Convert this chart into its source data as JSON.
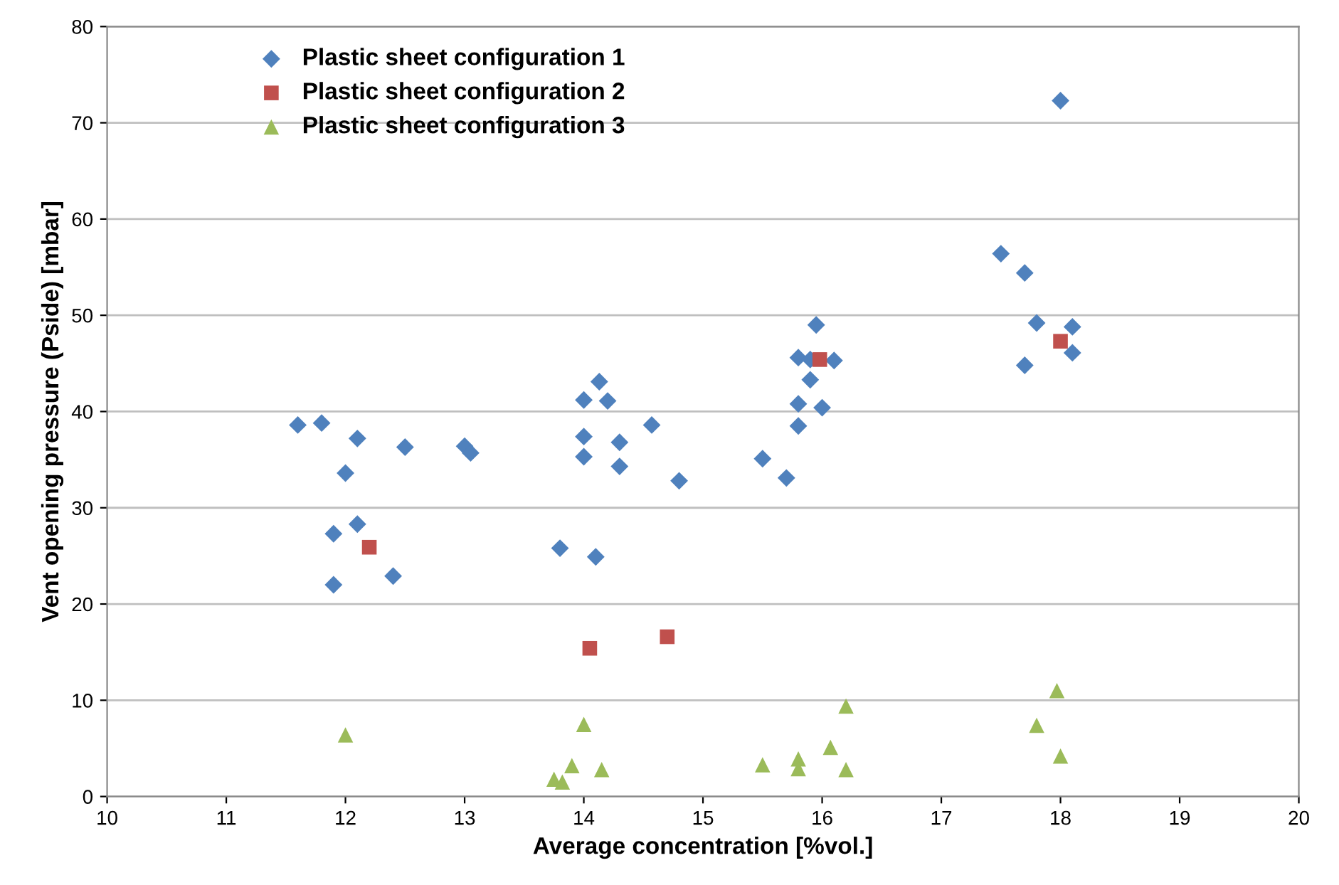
{
  "chart_data": {
    "type": "scatter",
    "xlabel": "Average concentration [%vol.]",
    "ylabel": "Vent opening pressure (Pside) [mbar]",
    "xlim": [
      10,
      20
    ],
    "xticks": [
      10,
      11,
      12,
      13,
      14,
      15,
      16,
      17,
      18,
      19,
      20
    ],
    "ylim": [
      0,
      80
    ],
    "yticks": [
      0,
      10,
      20,
      30,
      40,
      50,
      60,
      70,
      80
    ],
    "grid": "y",
    "legend": "top left",
    "series": [
      {
        "name": "Plastic sheet configuration 1",
        "color": "#4f81bd",
        "marker": "diamond",
        "x": [
          11.6,
          11.8,
          12.1,
          12.0,
          12.5,
          13.0,
          13.05,
          11.9,
          12.1,
          11.9,
          12.4,
          13.8,
          14.1,
          14.0,
          14.13,
          14.2,
          14.0,
          14.0,
          14.3,
          14.3,
          14.57,
          14.8,
          15.5,
          15.7,
          15.8,
          15.95,
          15.9,
          15.9,
          16.1,
          15.8,
          15.8,
          16.0,
          17.5,
          17.7,
          17.8,
          17.7,
          18.1,
          18.1,
          18.0
        ],
        "values": [
          38.6,
          38.8,
          37.2,
          33.6,
          36.3,
          36.4,
          35.7,
          27.3,
          28.3,
          22.0,
          22.9,
          25.8,
          24.9,
          41.2,
          43.1,
          41.1,
          37.4,
          35.3,
          36.8,
          34.3,
          38.6,
          32.8,
          35.1,
          33.1,
          45.6,
          49.0,
          45.4,
          43.3,
          45.3,
          40.8,
          38.5,
          40.4,
          56.4,
          54.4,
          49.2,
          44.8,
          48.8,
          46.1,
          72.3
        ]
      },
      {
        "name": "Plastic sheet configuration 2",
        "color": "#c0504d",
        "marker": "square",
        "x": [
          12.2,
          14.05,
          14.7,
          15.98,
          18.0
        ],
        "values": [
          25.9,
          15.4,
          16.6,
          45.4,
          47.3
        ]
      },
      {
        "name": "Plastic sheet configuration 3",
        "color": "#9bbb59",
        "marker": "triangle",
        "x": [
          12.0,
          14.0,
          13.9,
          13.75,
          13.82,
          14.15,
          15.5,
          15.8,
          15.8,
          16.07,
          16.2,
          16.2,
          17.97,
          17.8,
          18.0
        ],
        "values": [
          6.4,
          7.5,
          3.2,
          1.8,
          1.5,
          2.8,
          3.3,
          3.9,
          2.9,
          5.1,
          9.4,
          2.8,
          11.0,
          7.4,
          4.2
        ]
      }
    ]
  }
}
